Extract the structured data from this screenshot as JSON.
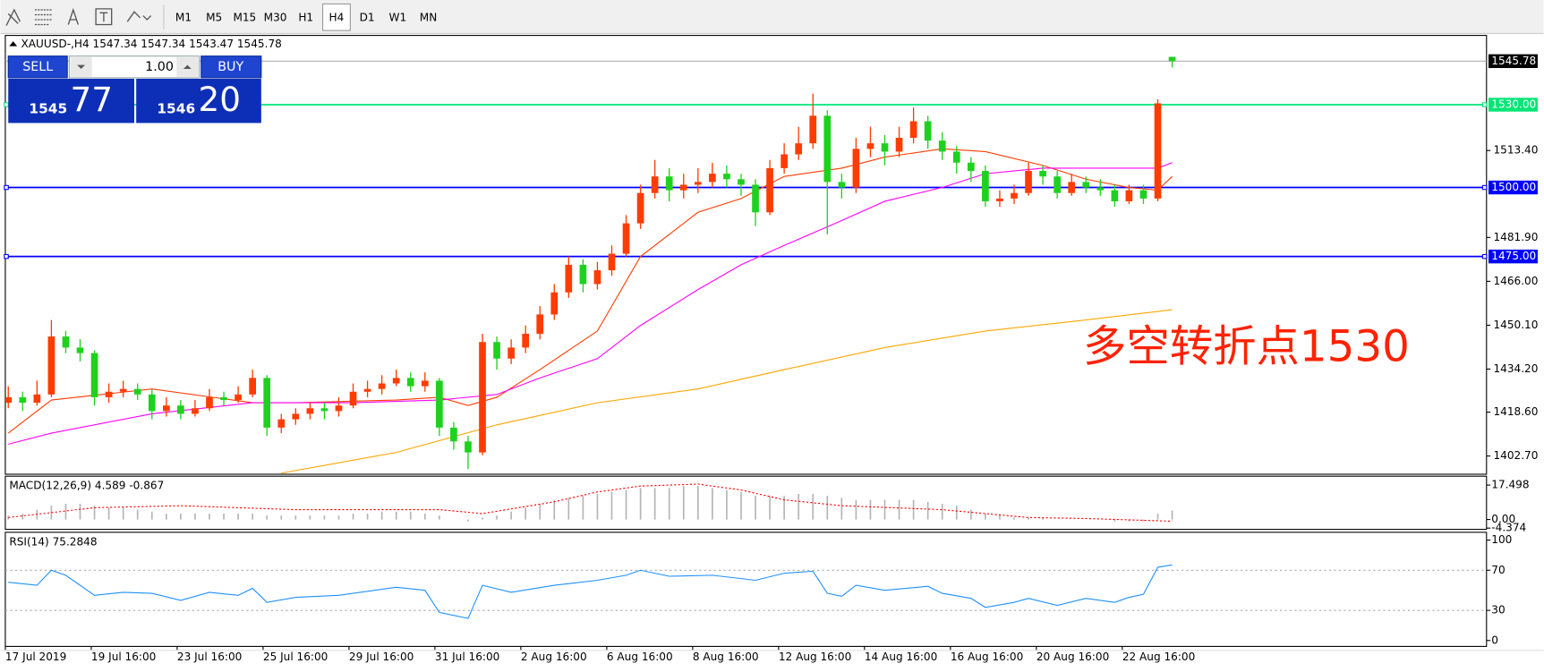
{
  "toolbar": {
    "timeframes": [
      "M1",
      "M5",
      "M15",
      "M30",
      "H1",
      "H4",
      "D1",
      "W1",
      "MN"
    ],
    "selected_index": 5
  },
  "trade_panel": {
    "sell_label": "SELL",
    "buy_label": "BUY",
    "lot": "1.00",
    "sell_big": "1545",
    "sell_small": "77",
    "buy_big": "1546",
    "buy_small": "20"
  },
  "chart": {
    "type": "candlestick",
    "header": "XAUUSD-,H4  1547.34 1547.34 1543.47 1545.78",
    "up_color": "#ff3c00",
    "down_color": "#1fd11f",
    "ylim": [
      1396.1,
      1555.1
    ],
    "yticks": [
      {
        "value": 1513.4,
        "label": "1513.40"
      },
      {
        "value": 1481.9,
        "label": "1481.90"
      },
      {
        "value": 1466,
        "label": "1466.00"
      },
      {
        "value": 1450.1,
        "label": "1450.10"
      },
      {
        "value": 1434.2,
        "label": "1434.20"
      },
      {
        "value": 1418.6,
        "label": "1418.60"
      },
      {
        "value": 1402.7,
        "label": "1402.70"
      }
    ],
    "x_labels": [
      "17 Jul 2019",
      "19 Jul 16:00",
      "23 Jul 16:00",
      "25 Jul 16:00",
      "29 Jul 16:00",
      "31 Jul 16:00",
      "2 Aug 16:00",
      "6 Aug 16:00",
      "8 Aug 16:00",
      "12 Aug 16:00",
      "14 Aug 16:00",
      "16 Aug 16:00",
      "20 Aug 16:00",
      "22 Aug 16:00"
    ],
    "candles": [
      [
        1422,
        1428,
        1420,
        1424
      ],
      [
        1424,
        1426,
        1419,
        1422
      ],
      [
        1422,
        1430,
        1421,
        1425
      ],
      [
        1425,
        1452,
        1424,
        1446
      ],
      [
        1446,
        1448,
        1440,
        1442
      ],
      [
        1442,
        1445,
        1437,
        1440
      ],
      [
        1440,
        1441,
        1421,
        1424
      ],
      [
        1424,
        1429,
        1422,
        1426
      ],
      [
        1426,
        1430,
        1424,
        1427
      ],
      [
        1427,
        1429,
        1423,
        1425
      ],
      [
        1425,
        1427,
        1416,
        1419
      ],
      [
        1419,
        1424,
        1417,
        1421
      ],
      [
        1421,
        1423,
        1416,
        1418
      ],
      [
        1418,
        1423,
        1417,
        1420
      ],
      [
        1420,
        1427,
        1419,
        1424
      ],
      [
        1424,
        1426,
        1421,
        1423
      ],
      [
        1423,
        1428,
        1422,
        1425
      ],
      [
        1425,
        1434,
        1424,
        1431
      ],
      [
        1431,
        1432,
        1410,
        1413
      ],
      [
        1413,
        1418,
        1411,
        1416
      ],
      [
        1416,
        1420,
        1414,
        1418
      ],
      [
        1418,
        1422,
        1416,
        1420
      ],
      [
        1420,
        1422,
        1416,
        1419
      ],
      [
        1419,
        1424,
        1417,
        1421
      ],
      [
        1421,
        1429,
        1420,
        1426
      ],
      [
        1426,
        1430,
        1424,
        1427
      ],
      [
        1427,
        1432,
        1425,
        1429
      ],
      [
        1429,
        1434,
        1428,
        1431
      ],
      [
        1431,
        1433,
        1426,
        1428
      ],
      [
        1428,
        1433,
        1426,
        1430
      ],
      [
        1430,
        1431,
        1410,
        1413
      ],
      [
        1413,
        1415,
        1405,
        1408
      ],
      [
        1408,
        1410,
        1398,
        1404
      ],
      [
        1404,
        1447,
        1403,
        1444
      ],
      [
        1444,
        1446,
        1434,
        1438
      ],
      [
        1438,
        1445,
        1436,
        1442
      ],
      [
        1442,
        1450,
        1440,
        1447
      ],
      [
        1447,
        1457,
        1445,
        1454
      ],
      [
        1454,
        1465,
        1452,
        1462
      ],
      [
        1462,
        1475,
        1460,
        1472
      ],
      [
        1472,
        1474,
        1462,
        1465
      ],
      [
        1465,
        1473,
        1463,
        1470
      ],
      [
        1470,
        1479,
        1468,
        1476
      ],
      [
        1476,
        1490,
        1475,
        1487
      ],
      [
        1487,
        1501,
        1485,
        1498
      ],
      [
        1498,
        1510,
        1496,
        1504
      ],
      [
        1504,
        1507,
        1495,
        1499
      ],
      [
        1499,
        1505,
        1496,
        1501
      ],
      [
        1501,
        1507,
        1498,
        1502
      ],
      [
        1502,
        1509,
        1500,
        1505
      ],
      [
        1505,
        1508,
        1500,
        1503
      ],
      [
        1503,
        1505,
        1497,
        1501
      ],
      [
        1501,
        1503,
        1486,
        1491
      ],
      [
        1491,
        1510,
        1490,
        1507
      ],
      [
        1507,
        1516,
        1505,
        1512
      ],
      [
        1512,
        1522,
        1510,
        1516
      ],
      [
        1516,
        1534,
        1514,
        1526
      ],
      [
        1526,
        1528,
        1483,
        1502
      ],
      [
        1502,
        1505,
        1496,
        1500
      ],
      [
        1500,
        1518,
        1498,
        1514
      ],
      [
        1514,
        1522,
        1511,
        1516
      ],
      [
        1516,
        1519,
        1508,
        1513
      ],
      [
        1513,
        1522,
        1511,
        1518
      ],
      [
        1518,
        1529,
        1516,
        1524
      ],
      [
        1524,
        1526,
        1514,
        1517
      ],
      [
        1517,
        1520,
        1510,
        1513
      ],
      [
        1513,
        1515,
        1505,
        1509
      ],
      [
        1509,
        1511,
        1502,
        1506
      ],
      [
        1506,
        1508,
        1493,
        1495
      ],
      [
        1495,
        1499,
        1493,
        1496
      ],
      [
        1496,
        1501,
        1494,
        1498
      ],
      [
        1498,
        1509,
        1497,
        1506
      ],
      [
        1506,
        1508,
        1501,
        1504
      ],
      [
        1504,
        1506,
        1496,
        1498
      ],
      [
        1498,
        1505,
        1497,
        1502
      ],
      [
        1502,
        1504,
        1498,
        1500
      ],
      [
        1500,
        1503,
        1497,
        1499
      ],
      [
        1499,
        1501,
        1493,
        1495
      ],
      [
        1495,
        1501,
        1494,
        1499
      ],
      [
        1499,
        1501,
        1494,
        1496
      ],
      [
        1496,
        1532,
        1495,
        1530.5
      ],
      [
        1547.34,
        1547.34,
        1543.47,
        1545.78
      ]
    ],
    "moving_averages": [
      {
        "color": "#ff3c00",
        "x": [
          0,
          3,
          10,
          17,
          20,
          27,
          30,
          32,
          34,
          37,
          41,
          44,
          48,
          51,
          54,
          58,
          61,
          65,
          68,
          72,
          75,
          78,
          80,
          81
        ],
        "values": [
          1411,
          1423,
          1427,
          1422,
          1422,
          1423,
          1424,
          1421,
          1424,
          1434,
          1448,
          1475,
          1491,
          1496,
          1504,
          1507,
          1511,
          1514,
          1513,
          1508,
          1503,
          1500,
          1499,
          1504
        ]
      },
      {
        "color": "#ff00ff",
        "x": [
          0,
          3,
          10,
          17,
          24,
          30,
          34,
          37,
          41,
          44,
          48,
          51,
          54,
          58,
          61,
          65,
          68,
          72,
          75,
          78,
          80,
          81
        ],
        "values": [
          1407,
          1411,
          1418,
          1422,
          1422,
          1423,
          1425,
          1431,
          1438,
          1450,
          1463,
          1472,
          1479,
          1488,
          1495,
          1500,
          1505,
          1507,
          1507,
          1507,
          1507,
          1509
        ]
      },
      {
        "color": "#ffa500",
        "x": [
          19,
          27,
          34,
          41,
          48,
          54,
          61,
          68,
          75,
          81
        ],
        "values": [
          1396.5,
          1404,
          1414,
          1422,
          1427,
          1434,
          1442,
          1448,
          1452,
          1455.7
        ]
      }
    ],
    "levels": [
      {
        "value": 1530,
        "label": "1530.00",
        "color": "#00e676"
      },
      {
        "value": 1500,
        "label": "1500.00",
        "color": "#0000ff"
      },
      {
        "value": 1475,
        "label": "1475.00",
        "color": "#0000ff"
      }
    ],
    "bid": {
      "value": 1545.78,
      "label": "1545.78"
    },
    "annotation": {
      "text": "多空转折点1530",
      "color": "#ff2200"
    }
  },
  "macd": {
    "label": "MACD(12,26,9) 4.589 -0.867",
    "ylim": [
      -5,
      22
    ],
    "yticks": [
      17.498,
      {
        "value": 0,
        "label": "0.00"
      },
      -4.374
    ],
    "histogram": [
      2,
      3,
      5,
      7,
      8,
      8,
      7,
      6,
      6,
      5,
      4,
      3,
      3,
      3,
      3,
      3,
      3,
      3,
      2,
      2,
      2,
      2,
      2,
      2,
      3,
      3,
      4,
      4,
      4,
      3,
      2,
      0,
      -1,
      1,
      2,
      4,
      6,
      8,
      10,
      11,
      12,
      13,
      14,
      15,
      16,
      16,
      16,
      17,
      17,
      16,
      15,
      14,
      12,
      12,
      12,
      13,
      13,
      12,
      11,
      10,
      10,
      10,
      10,
      10,
      9,
      8,
      7,
      5,
      3,
      2,
      1,
      1,
      1,
      0,
      0,
      0,
      0,
      -1,
      -1,
      -1,
      3,
      4.589
    ],
    "signal": {
      "color": "#ff0000",
      "x": [
        0,
        6,
        12,
        20,
        27,
        30,
        33,
        38,
        41,
        44,
        48,
        51,
        54,
        58,
        65,
        68,
        71,
        75,
        81
      ],
      "values": [
        1,
        6,
        7,
        5,
        5,
        5,
        3,
        9,
        14,
        17,
        18,
        15,
        10,
        7,
        5,
        3,
        1,
        0.5,
        -0.867
      ]
    }
  },
  "rsi": {
    "label": "RSI(14) 75.2848",
    "ylim": [
      -5.9,
      107.8
    ],
    "yticks": [
      100,
      70,
      30,
      0
    ],
    "levels": [
      70,
      30
    ],
    "color": "#1e90ff",
    "x": [
      0,
      2,
      3,
      4,
      6,
      8,
      10,
      12,
      14,
      16,
      17,
      18,
      20,
      23,
      27,
      29,
      30,
      32,
      33,
      35,
      38,
      41,
      43,
      44,
      46,
      49,
      52,
      54,
      56,
      57,
      58,
      59,
      61,
      64,
      65,
      67,
      68,
      70,
      71,
      73,
      75,
      77,
      78,
      79,
      80,
      81
    ],
    "values": [
      58,
      55,
      70,
      65,
      45,
      48,
      47,
      40,
      48,
      45,
      52,
      38,
      43,
      45,
      53,
      50,
      28,
      22,
      55,
      48,
      55,
      60,
      65,
      70,
      64,
      65,
      60,
      67,
      69,
      47,
      44,
      55,
      50,
      54,
      47,
      42,
      33,
      38,
      42,
      35,
      42,
      38,
      43,
      46,
      73,
      75.2848
    ]
  }
}
